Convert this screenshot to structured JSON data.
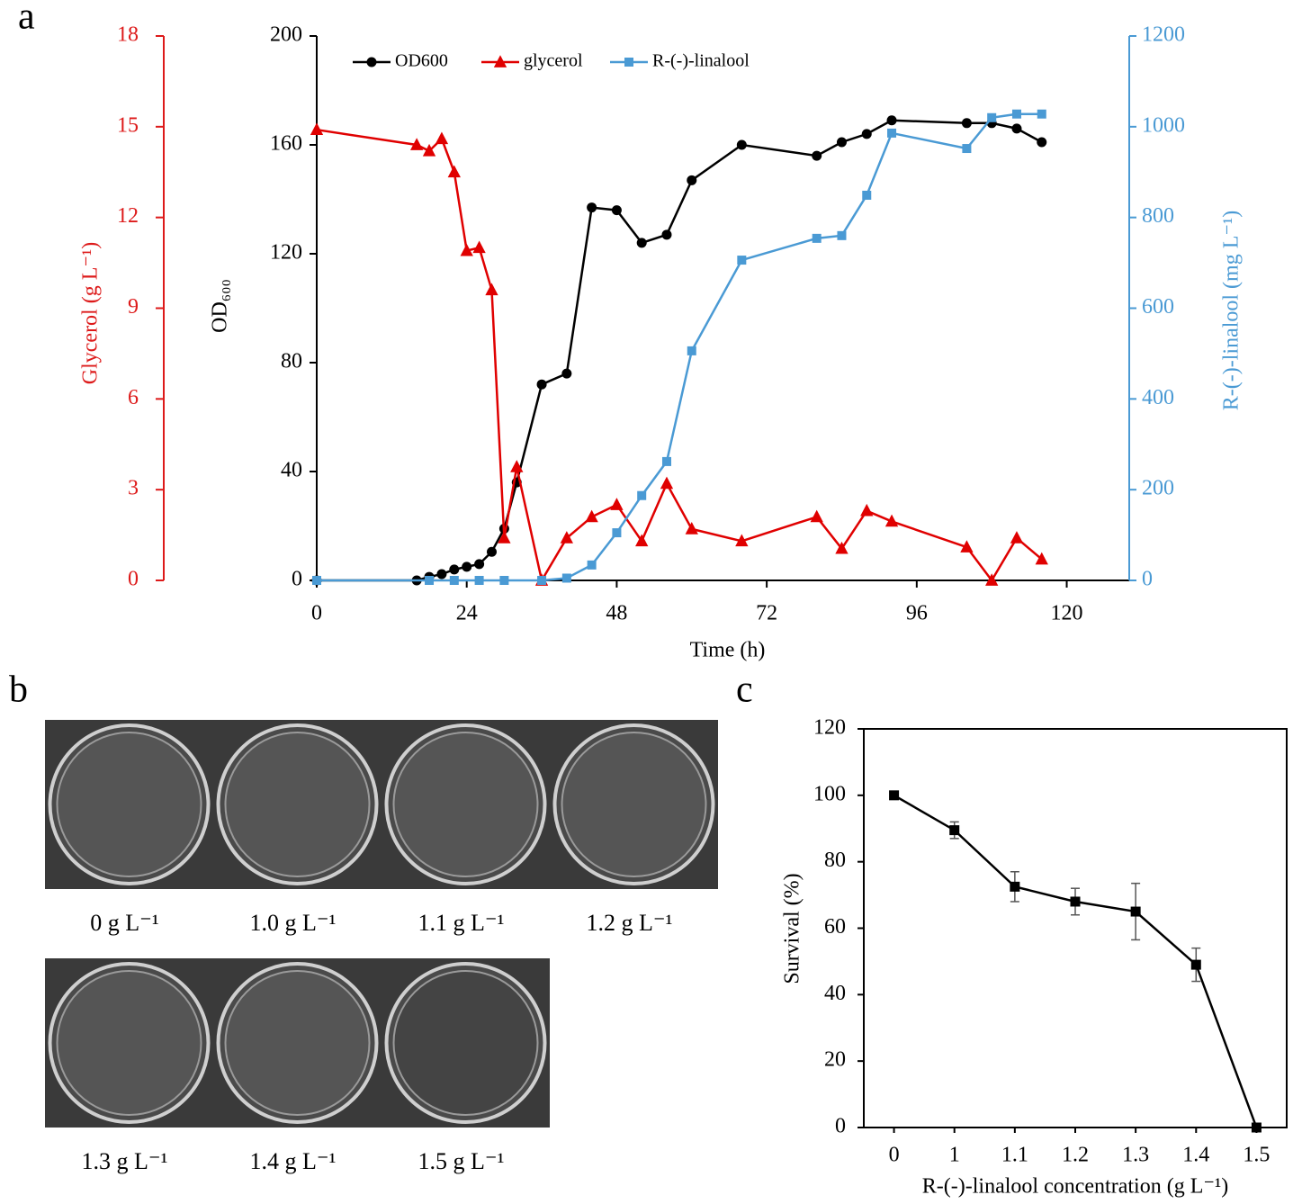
{
  "panel_labels": [
    "a",
    "b",
    "c"
  ],
  "plates": {
    "labels": [
      "0 g L⁻¹",
      "1.0 g L⁻¹",
      "1.1 g L⁻¹",
      "1.2 g L⁻¹",
      "1.3 g L⁻¹",
      "1.4 g L⁻¹",
      "1.5 g L⁻¹"
    ]
  },
  "chart_data": [
    {
      "type": "line",
      "x_label": "Time (h)",
      "y_label": "OD₆₀₀",
      "y2_label": "R-(-)-linalool (mg L⁻¹)",
      "y3_label": "Glycerol (g L⁻¹)",
      "xlim": [
        0,
        130
      ],
      "xticks": [
        0,
        24,
        48,
        72,
        96,
        120
      ],
      "ylim": [
        0,
        200
      ],
      "yticks": [
        0,
        40,
        80,
        120,
        160,
        200
      ],
      "y2lim": [
        0,
        1200
      ],
      "y2ticks": [
        0,
        200,
        400,
        600,
        800,
        1000,
        1200
      ],
      "y2_color": "#4a9ad4",
      "y3lim": [
        0,
        18
      ],
      "y3ticks": [
        0,
        3,
        6,
        9,
        12,
        15,
        18
      ],
      "y3_color": "#dd1a1a",
      "legend": "upper left",
      "series": [
        {
          "name": "OD600",
          "color": "#000000",
          "marker": "circle",
          "x": [
            0,
            16,
            18,
            20,
            22,
            24,
            26,
            28,
            30,
            32,
            36,
            40,
            44,
            48,
            52,
            56,
            60,
            68,
            80,
            84,
            88,
            92,
            104,
            108,
            112,
            116
          ],
          "values": [
            0,
            0,
            1.3,
            2.3,
            4,
            5,
            6,
            10.5,
            19,
            36,
            72,
            76,
            137,
            136,
            124,
            127,
            147,
            160,
            156,
            161,
            164,
            169,
            168,
            168,
            166,
            161
          ]
        },
        {
          "name": "glycerol",
          "color": "#e00000",
          "marker": "triangle",
          "axis": "y3",
          "x": [
            0,
            16,
            18,
            20,
            22,
            24,
            26,
            28,
            30,
            32,
            36,
            40,
            44,
            48,
            52,
            56,
            60,
            68,
            80,
            84,
            88,
            92,
            104,
            108,
            112,
            116
          ],
          "values": [
            14.9,
            14.4,
            14.2,
            14.6,
            13.5,
            10.9,
            11,
            9.6,
            1.4,
            3.75,
            0,
            1.4,
            2.1,
            2.5,
            1.3,
            3.2,
            1.7,
            1.3,
            2.1,
            1.05,
            2.3,
            1.95,
            1.1,
            0,
            1.4,
            0.7
          ]
        },
        {
          "name": "R-(-)-linalool",
          "color": "#4a9ad4",
          "marker": "square",
          "axis": "y2",
          "x": [
            0,
            18,
            22,
            26,
            30,
            36,
            40,
            44,
            48,
            52,
            56,
            60,
            68,
            80,
            84,
            88,
            92,
            104,
            108,
            112,
            116
          ],
          "values": [
            0,
            0,
            0,
            0,
            0,
            0,
            5,
            34,
            105,
            187,
            262,
            506,
            706,
            754,
            760,
            849,
            986,
            952,
            1020,
            1028,
            1028
          ]
        }
      ]
    },
    {
      "type": "line",
      "x_label": "R-(-)-linalool concentration (g L⁻¹)",
      "y_label": "Survival (%)",
      "categories": [
        "0",
        "1",
        "1.1",
        "1.2",
        "1.3",
        "1.4",
        "1.5"
      ],
      "values": [
        100,
        89.5,
        72.5,
        68,
        65,
        49,
        0
      ],
      "errors": [
        0,
        2.5,
        4.5,
        4,
        8.5,
        5,
        0
      ],
      "color": "#000000",
      "marker": "square",
      "ylim": [
        0,
        120
      ],
      "yticks": [
        0,
        20,
        40,
        60,
        80,
        100,
        120
      ]
    }
  ]
}
